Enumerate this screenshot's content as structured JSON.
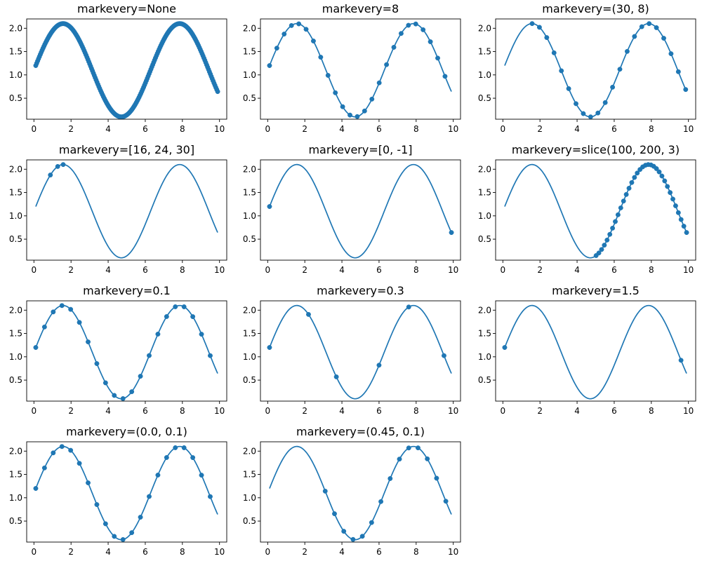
{
  "colors": {
    "series": "#1f77b4",
    "axes": "#000000",
    "background": "#ffffff"
  },
  "chart_data": [
    {
      "type": "line",
      "title": "markevery=None",
      "x_range": [
        0.1,
        9.9
      ],
      "samples": 200,
      "function": "sin(x) + 1.1",
      "marker_indices": "all",
      "xlim": [
        -0.39,
        10.39
      ],
      "ylim": [
        0.05,
        2.2
      ],
      "xticks": [
        0,
        2,
        4,
        6,
        8,
        10
      ],
      "yticks": [
        0.5,
        1.0,
        1.5,
        2.0
      ],
      "xtick_labels": [
        "0",
        "2",
        "4",
        "6",
        "8",
        "10"
      ],
      "ytick_labels": [
        "0.5",
        "1.0",
        "1.5",
        "2.0"
      ],
      "grid": false
    },
    {
      "type": "line",
      "title": "markevery=8",
      "x_range": [
        0.1,
        9.9
      ],
      "samples": 200,
      "function": "sin(x) + 1.1",
      "marker_indices": {
        "start": 0,
        "step": 8
      },
      "xlim": [
        -0.39,
        10.39
      ],
      "ylim": [
        0.05,
        2.2
      ],
      "xticks": [
        0,
        2,
        4,
        6,
        8,
        10
      ],
      "yticks": [
        0.5,
        1.0,
        1.5,
        2.0
      ],
      "xtick_labels": [
        "0",
        "2",
        "4",
        "6",
        "8",
        "10"
      ],
      "ytick_labels": [
        "0.5",
        "1.0",
        "1.5",
        "2.0"
      ],
      "grid": false
    },
    {
      "type": "line",
      "title": "markevery=(30, 8)",
      "x_range": [
        0.1,
        9.9
      ],
      "samples": 200,
      "function": "sin(x) + 1.1",
      "marker_indices": {
        "start": 30,
        "step": 8
      },
      "xlim": [
        -0.39,
        10.39
      ],
      "ylim": [
        0.05,
        2.2
      ],
      "xticks": [
        0,
        2,
        4,
        6,
        8,
        10
      ],
      "yticks": [
        0.5,
        1.0,
        1.5,
        2.0
      ],
      "xtick_labels": [
        "0",
        "2",
        "4",
        "6",
        "8",
        "10"
      ],
      "ytick_labels": [
        "0.5",
        "1.0",
        "1.5",
        "2.0"
      ],
      "grid": false
    },
    {
      "type": "line",
      "title": "markevery=[16, 24, 30]",
      "x_range": [
        0.1,
        9.9
      ],
      "samples": 200,
      "function": "sin(x) + 1.1",
      "marker_indices": [
        16,
        24,
        30
      ],
      "xlim": [
        -0.39,
        10.39
      ],
      "ylim": [
        0.05,
        2.2
      ],
      "xticks": [
        0,
        2,
        4,
        6,
        8,
        10
      ],
      "yticks": [
        0.5,
        1.0,
        1.5,
        2.0
      ],
      "xtick_labels": [
        "0",
        "2",
        "4",
        "6",
        "8",
        "10"
      ],
      "ytick_labels": [
        "0.5",
        "1.0",
        "1.5",
        "2.0"
      ],
      "grid": false
    },
    {
      "type": "line",
      "title": "markevery=[0, -1]",
      "x_range": [
        0.1,
        9.9
      ],
      "samples": 200,
      "function": "sin(x) + 1.1",
      "marker_indices": [
        0,
        199
      ],
      "xlim": [
        -0.39,
        10.39
      ],
      "ylim": [
        0.05,
        2.2
      ],
      "xticks": [
        0,
        2,
        4,
        6,
        8,
        10
      ],
      "yticks": [
        0.5,
        1.0,
        1.5,
        2.0
      ],
      "xtick_labels": [
        "0",
        "2",
        "4",
        "6",
        "8",
        "10"
      ],
      "ytick_labels": [
        "0.5",
        "1.0",
        "1.5",
        "2.0"
      ],
      "grid": false
    },
    {
      "type": "line",
      "title": "markevery=slice(100, 200, 3)",
      "x_range": [
        0.1,
        9.9
      ],
      "samples": 200,
      "function": "sin(x) + 1.1",
      "marker_indices": {
        "start": 100,
        "stop": 200,
        "step": 3
      },
      "xlim": [
        -0.39,
        10.39
      ],
      "ylim": [
        0.05,
        2.2
      ],
      "xticks": [
        0,
        2,
        4,
        6,
        8,
        10
      ],
      "yticks": [
        0.5,
        1.0,
        1.5,
        2.0
      ],
      "xtick_labels": [
        "0",
        "2",
        "4",
        "6",
        "8",
        "10"
      ],
      "ytick_labels": [
        "0.5",
        "1.0",
        "1.5",
        "2.0"
      ],
      "grid": false
    },
    {
      "type": "line",
      "title": "markevery=0.1",
      "x_range": [
        0.1,
        9.9
      ],
      "samples": 200,
      "function": "sin(x) + 1.1",
      "marker_x": [
        0.1,
        0.57,
        1.04,
        1.51,
        1.98,
        2.45,
        2.92,
        3.39,
        3.86,
        4.33,
        4.8,
        5.27,
        5.74,
        6.21,
        6.68,
        7.15,
        7.62,
        8.09,
        8.56,
        9.03,
        9.5
      ],
      "xlim": [
        -0.39,
        10.39
      ],
      "ylim": [
        0.05,
        2.2
      ],
      "xticks": [
        0,
        2,
        4,
        6,
        8,
        10
      ],
      "yticks": [
        0.5,
        1.0,
        1.5,
        2.0
      ],
      "xtick_labels": [
        "0",
        "2",
        "4",
        "6",
        "8",
        "10"
      ],
      "ytick_labels": [
        "0.5",
        "1.0",
        "1.5",
        "2.0"
      ],
      "grid": false
    },
    {
      "type": "line",
      "title": "markevery=0.3",
      "x_range": [
        0.1,
        9.9
      ],
      "samples": 200,
      "function": "sin(x) + 1.1",
      "marker_x": [
        0.1,
        2.2,
        3.7,
        6.0,
        7.6,
        9.5
      ],
      "xlim": [
        -0.39,
        10.39
      ],
      "ylim": [
        0.05,
        2.2
      ],
      "xticks": [
        0,
        2,
        4,
        6,
        8,
        10
      ],
      "yticks": [
        0.5,
        1.0,
        1.5,
        2.0
      ],
      "xtick_labels": [
        "0",
        "2",
        "4",
        "6",
        "8",
        "10"
      ],
      "ytick_labels": [
        "0.5",
        "1.0",
        "1.5",
        "2.0"
      ],
      "grid": false
    },
    {
      "type": "line",
      "title": "markevery=1.5",
      "x_range": [
        0.1,
        9.9
      ],
      "samples": 200,
      "function": "sin(x) + 1.1",
      "marker_x": [
        0.1,
        9.6
      ],
      "xlim": [
        -0.39,
        10.39
      ],
      "ylim": [
        0.05,
        2.2
      ],
      "xticks": [
        0,
        2,
        4,
        6,
        8,
        10
      ],
      "yticks": [
        0.5,
        1.0,
        1.5,
        2.0
      ],
      "xtick_labels": [
        "0",
        "2",
        "4",
        "6",
        "8",
        "10"
      ],
      "ytick_labels": [
        "0.5",
        "1.0",
        "1.5",
        "2.0"
      ],
      "grid": false
    },
    {
      "type": "line",
      "title": "markevery=(0.0, 0.1)",
      "x_range": [
        0.1,
        9.9
      ],
      "samples": 200,
      "function": "sin(x) + 1.1",
      "marker_x": [
        0.1,
        0.57,
        1.04,
        1.51,
        1.98,
        2.45,
        2.92,
        3.39,
        3.86,
        4.33,
        4.8,
        5.27,
        5.74,
        6.21,
        6.68,
        7.15,
        7.62,
        8.09,
        8.56,
        9.03,
        9.5
      ],
      "xlim": [
        -0.39,
        10.39
      ],
      "ylim": [
        0.05,
        2.2
      ],
      "xticks": [
        0,
        2,
        4,
        6,
        8,
        10
      ],
      "yticks": [
        0.5,
        1.0,
        1.5,
        2.0
      ],
      "xtick_labels": [
        "0",
        "2",
        "4",
        "6",
        "8",
        "10"
      ],
      "ytick_labels": [
        "0.5",
        "1.0",
        "1.5",
        "2.0"
      ],
      "grid": false
    },
    {
      "type": "line",
      "title": "markevery=(0.45, 0.1)",
      "x_range": [
        0.1,
        9.9
      ],
      "samples": 200,
      "function": "sin(x) + 1.1",
      "marker_x": [
        3.1,
        3.6,
        4.1,
        4.6,
        5.1,
        5.6,
        6.1,
        6.6,
        7.1,
        7.6,
        8.1,
        8.6,
        9.1,
        9.6
      ],
      "xlim": [
        -0.39,
        10.39
      ],
      "ylim": [
        0.05,
        2.2
      ],
      "xticks": [
        0,
        2,
        4,
        6,
        8,
        10
      ],
      "yticks": [
        0.5,
        1.0,
        1.5,
        2.0
      ],
      "xtick_labels": [
        "0",
        "2",
        "4",
        "6",
        "8",
        "10"
      ],
      "ytick_labels": [
        "0.5",
        "1.0",
        "1.5",
        "2.0"
      ],
      "grid": false
    }
  ]
}
